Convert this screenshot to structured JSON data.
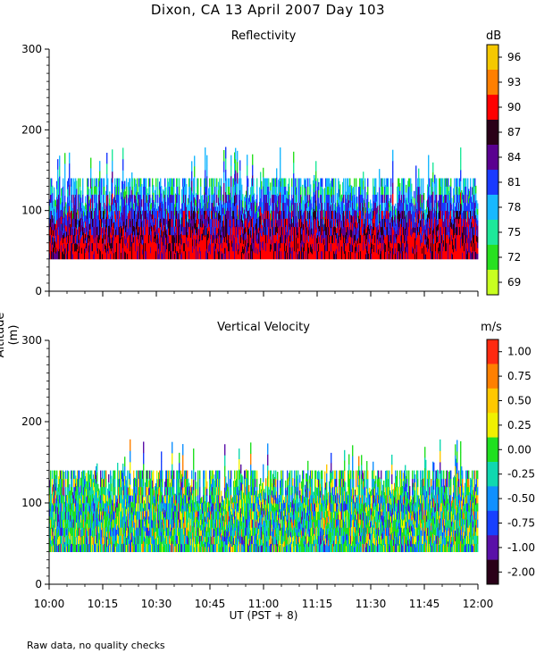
{
  "page_title": "Dixon, CA 13 April 2007  Day 103",
  "y_axis_label": "Altitude (m)",
  "x_axis_label": "UT  (PST + 8)",
  "note": "Raw data, no quality checks",
  "chart_data": [
    {
      "type": "heatmap",
      "title": "Reflectivity",
      "colorbar_unit": "dB",
      "colorbar_labels": [
        "96",
        "93",
        "90",
        "87",
        "84",
        "81",
        "78",
        "75",
        "72",
        "69"
      ],
      "colorbar_colors": [
        "#f5c800",
        "#ff7f00",
        "#ff0000",
        "#2a0018",
        "#5a0090",
        "#1a3aff",
        "#18b8ff",
        "#1ee89a",
        "#28e020",
        "#c8ff20"
      ],
      "xlabel": "UT  (PST + 8)",
      "ylabel": "Altitude (m)",
      "x_ticks": [
        "10:00",
        "10:15",
        "10:30",
        "10:45",
        "11:00",
        "11:15",
        "11:30",
        "11:45",
        "12:00"
      ],
      "y_ticks": [
        "0",
        "100",
        "200",
        "300"
      ],
      "ylim": [
        0,
        300
      ],
      "xlim": [
        "10:00",
        "12:00"
      ],
      "echo_base_m": 40,
      "typical_top_m": 140,
      "max_top_m": 180
    },
    {
      "type": "heatmap",
      "title": "Vertical Velocity",
      "colorbar_unit": "m/s",
      "colorbar_labels": [
        "1.00",
        "0.75",
        "0.50",
        "0.25",
        "0.00",
        "-0.25",
        "-0.50",
        "-0.75",
        "-1.00",
        "-2.00"
      ],
      "colorbar_colors": [
        "#ff2a10",
        "#ff8000",
        "#ffc800",
        "#f0f000",
        "#20e020",
        "#10d8b0",
        "#1090ff",
        "#1840ff",
        "#5a10a8",
        "#2a0018"
      ],
      "xlabel": "UT  (PST + 8)",
      "ylabel": "Altitude (m)",
      "x_ticks": [
        "10:00",
        "10:15",
        "10:30",
        "10:45",
        "11:00",
        "11:15",
        "11:30",
        "11:45",
        "12:00"
      ],
      "y_ticks": [
        "0",
        "100",
        "200",
        "300"
      ],
      "ylim": [
        0,
        300
      ],
      "xlim": [
        "10:00",
        "12:00"
      ],
      "echo_base_m": 40,
      "typical_top_m": 140,
      "max_top_m": 180
    }
  ]
}
